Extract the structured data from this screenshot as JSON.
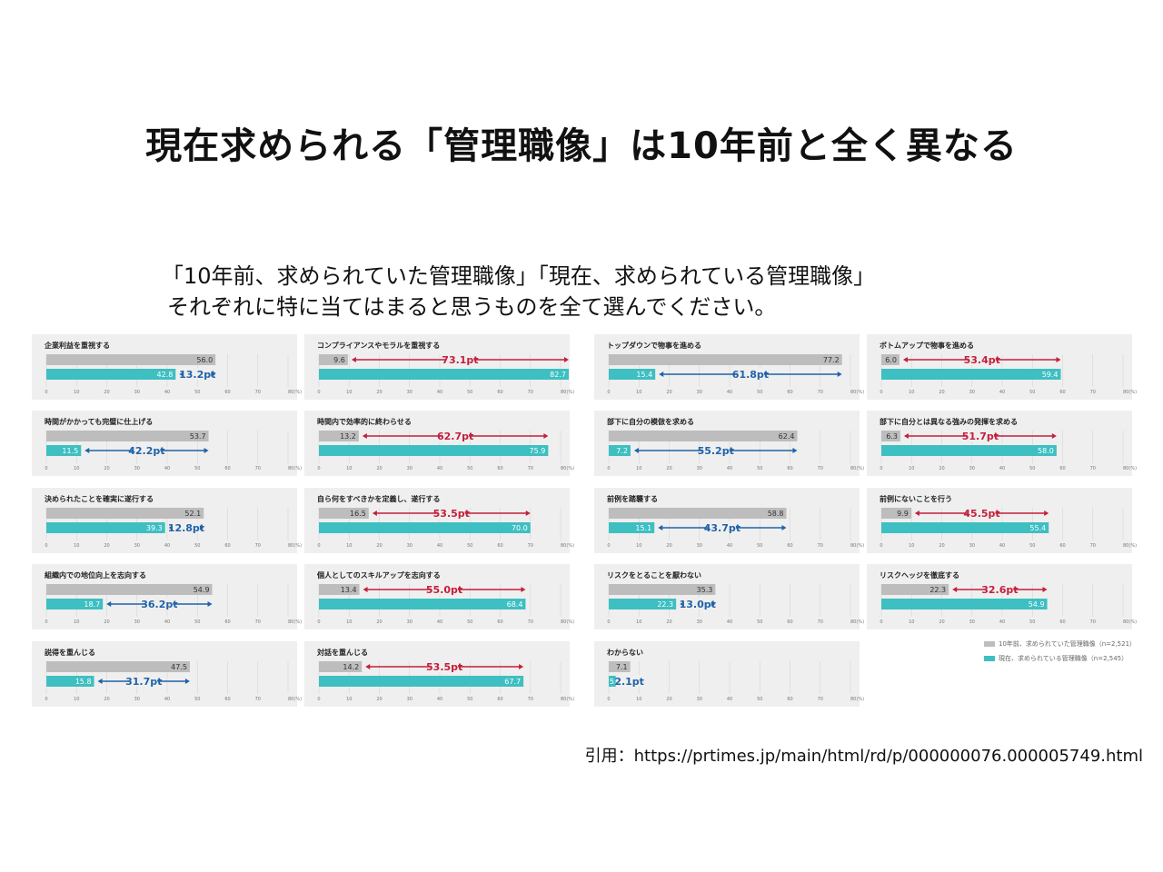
{
  "title": "現在求められる「管理職像」は10年前と全く異なる",
  "question_line1": "「10年前、求められていた管理職像」「現在、求められている管理職像」",
  "question_line2": "それぞれに特に当てはまると思うものを全て選んでください。",
  "citation": "引用：https://prtimes.jp/main/html/rd/p/000000076.000005749.html",
  "legend": {
    "past": "10年前、求められていた管理職像（n=2,521）",
    "now": "現在、求められている管理職像（n=2,545）"
  },
  "colors": {
    "past": "#bdbdbd",
    "now": "#3ebfc2",
    "decrease": "#1f63a8",
    "increase": "#c41f3b",
    "panel": "#efefef"
  },
  "chart_data": [
    {
      "type": "bar",
      "title": "企業利益を重視する",
      "categories": [
        "10年前",
        "現在"
      ],
      "values": [
        56.0,
        42.8
      ],
      "diff_label": "13.2pt",
      "direction": "down",
      "xlim": [
        0,
        80
      ],
      "ticks": [
        "0",
        "10",
        "20",
        "30",
        "40",
        "50",
        "60",
        "70",
        "80(%)"
      ]
    },
    {
      "type": "bar",
      "title": "コンプライアンスやモラルを重視する",
      "categories": [
        "10年前",
        "現在"
      ],
      "values": [
        9.6,
        82.7
      ],
      "diff_label": "73.1pt",
      "direction": "up",
      "xlim": [
        0,
        80
      ],
      "ticks": [
        "0",
        "10",
        "20",
        "30",
        "40",
        "50",
        "60",
        "70",
        "80(%)"
      ]
    },
    {
      "type": "bar",
      "title": "トップダウンで物事を進める",
      "categories": [
        "10年前",
        "現在"
      ],
      "values": [
        77.2,
        15.4
      ],
      "diff_label": "61.8pt",
      "direction": "down",
      "xlim": [
        0,
        80
      ],
      "ticks": [
        "0",
        "10",
        "20",
        "30",
        "40",
        "50",
        "60",
        "70",
        "80(%)"
      ]
    },
    {
      "type": "bar",
      "title": "ボトムアップで物事を進める",
      "categories": [
        "10年前",
        "現在"
      ],
      "values": [
        6.0,
        59.4
      ],
      "diff_label": "53.4pt",
      "direction": "up",
      "xlim": [
        0,
        80
      ],
      "ticks": [
        "0",
        "10",
        "20",
        "30",
        "40",
        "50",
        "60",
        "70",
        "80(%)"
      ]
    },
    {
      "type": "bar",
      "title": "時間がかかっても完璧に仕上げる",
      "categories": [
        "10年前",
        "現在"
      ],
      "values": [
        53.7,
        11.5
      ],
      "diff_label": "42.2pt",
      "direction": "down",
      "xlim": [
        0,
        80
      ],
      "ticks": [
        "0",
        "10",
        "20",
        "30",
        "40",
        "50",
        "60",
        "70",
        "80(%)"
      ]
    },
    {
      "type": "bar",
      "title": "時間内で効率的に終わらせる",
      "categories": [
        "10年前",
        "現在"
      ],
      "values": [
        13.2,
        75.9
      ],
      "diff_label": "62.7pt",
      "direction": "up",
      "xlim": [
        0,
        80
      ],
      "ticks": [
        "0",
        "10",
        "20",
        "30",
        "40",
        "50",
        "60",
        "70",
        "80(%)"
      ]
    },
    {
      "type": "bar",
      "title": "部下に自分の模倣を求める",
      "categories": [
        "10年前",
        "現在"
      ],
      "values": [
        62.4,
        7.2
      ],
      "diff_label": "55.2pt",
      "direction": "down",
      "xlim": [
        0,
        80
      ],
      "ticks": [
        "0",
        "10",
        "20",
        "30",
        "40",
        "50",
        "60",
        "70",
        "80(%)"
      ]
    },
    {
      "type": "bar",
      "title": "部下に自分とは異なる強みの発揮を求める",
      "categories": [
        "10年前",
        "現在"
      ],
      "values": [
        6.3,
        58.0
      ],
      "diff_label": "51.7pt",
      "direction": "up",
      "xlim": [
        0,
        80
      ],
      "ticks": [
        "0",
        "10",
        "20",
        "30",
        "40",
        "50",
        "60",
        "70",
        "80(%)"
      ]
    },
    {
      "type": "bar",
      "title": "決められたことを確実に遂行する",
      "categories": [
        "10年前",
        "現在"
      ],
      "values": [
        52.1,
        39.3
      ],
      "diff_label": "12.8pt",
      "direction": "down",
      "xlim": [
        0,
        80
      ],
      "ticks": [
        "0",
        "10",
        "20",
        "30",
        "40",
        "50",
        "60",
        "70",
        "80(%)"
      ]
    },
    {
      "type": "bar",
      "title": "自ら何をすべきかを定義し、遂行する",
      "categories": [
        "10年前",
        "現在"
      ],
      "values": [
        16.5,
        70.0
      ],
      "diff_label": "53.5pt",
      "direction": "up",
      "xlim": [
        0,
        80
      ],
      "ticks": [
        "0",
        "10",
        "20",
        "30",
        "40",
        "50",
        "60",
        "70",
        "80(%)"
      ]
    },
    {
      "type": "bar",
      "title": "前例を踏襲する",
      "categories": [
        "10年前",
        "現在"
      ],
      "values": [
        58.8,
        15.1
      ],
      "diff_label": "43.7pt",
      "direction": "down",
      "xlim": [
        0,
        80
      ],
      "ticks": [
        "0",
        "10",
        "20",
        "30",
        "40",
        "50",
        "60",
        "70",
        "80(%)"
      ]
    },
    {
      "type": "bar",
      "title": "前例にないことを行う",
      "categories": [
        "10年前",
        "現在"
      ],
      "values": [
        9.9,
        55.4
      ],
      "diff_label": "45.5pt",
      "direction": "up",
      "xlim": [
        0,
        80
      ],
      "ticks": [
        "0",
        "10",
        "20",
        "30",
        "40",
        "50",
        "60",
        "70",
        "80(%)"
      ]
    },
    {
      "type": "bar",
      "title": "組織内での地位向上を志向する",
      "categories": [
        "10年前",
        "現在"
      ],
      "values": [
        54.9,
        18.7
      ],
      "diff_label": "36.2pt",
      "direction": "down",
      "xlim": [
        0,
        80
      ],
      "ticks": [
        "0",
        "10",
        "20",
        "30",
        "40",
        "50",
        "60",
        "70",
        "80(%)"
      ]
    },
    {
      "type": "bar",
      "title": "個人としてのスキルアップを志向する",
      "categories": [
        "10年前",
        "現在"
      ],
      "values": [
        13.4,
        68.4
      ],
      "diff_label": "55.0pt",
      "direction": "up",
      "xlim": [
        0,
        80
      ],
      "ticks": [
        "0",
        "10",
        "20",
        "30",
        "40",
        "50",
        "60",
        "70",
        "80(%)"
      ]
    },
    {
      "type": "bar",
      "title": "リスクをとることを厭わない",
      "categories": [
        "10年前",
        "現在"
      ],
      "values": [
        35.3,
        22.3
      ],
      "diff_label": "13.0pt",
      "direction": "down",
      "xlim": [
        0,
        80
      ],
      "ticks": [
        "0",
        "10",
        "20",
        "30",
        "40",
        "50",
        "60",
        "70",
        "80(%)"
      ]
    },
    {
      "type": "bar",
      "title": "リスクヘッジを徹底する",
      "categories": [
        "10年前",
        "現在"
      ],
      "values": [
        22.3,
        54.9
      ],
      "diff_label": "32.6pt",
      "direction": "up",
      "xlim": [
        0,
        80
      ],
      "ticks": [
        "0",
        "10",
        "20",
        "30",
        "40",
        "50",
        "60",
        "70",
        "80(%)"
      ]
    },
    {
      "type": "bar",
      "title": "説得を重んじる",
      "categories": [
        "10年前",
        "現在"
      ],
      "values": [
        47.5,
        15.8
      ],
      "diff_label": "31.7pt",
      "direction": "down",
      "xlim": [
        0,
        80
      ],
      "ticks": [
        "0",
        "10",
        "20",
        "30",
        "40",
        "50",
        "60",
        "70",
        "80(%)"
      ]
    },
    {
      "type": "bar",
      "title": "対話を重んじる",
      "categories": [
        "10年前",
        "現在"
      ],
      "values": [
        14.2,
        67.7
      ],
      "diff_label": "53.5pt",
      "direction": "up",
      "xlim": [
        0,
        80
      ],
      "ticks": [
        "0",
        "10",
        "20",
        "30",
        "40",
        "50",
        "60",
        "70",
        "80(%)"
      ]
    },
    {
      "type": "bar",
      "title": "わからない",
      "categories": [
        "10年前",
        "現在"
      ],
      "values": [
        7.1,
        5.0
      ],
      "diff_label": "2.1pt",
      "direction": "down",
      "xlim": [
        0,
        80
      ],
      "ticks": [
        "0",
        "10",
        "20",
        "30",
        "40",
        "50",
        "60",
        "70",
        "80(%)"
      ]
    }
  ]
}
